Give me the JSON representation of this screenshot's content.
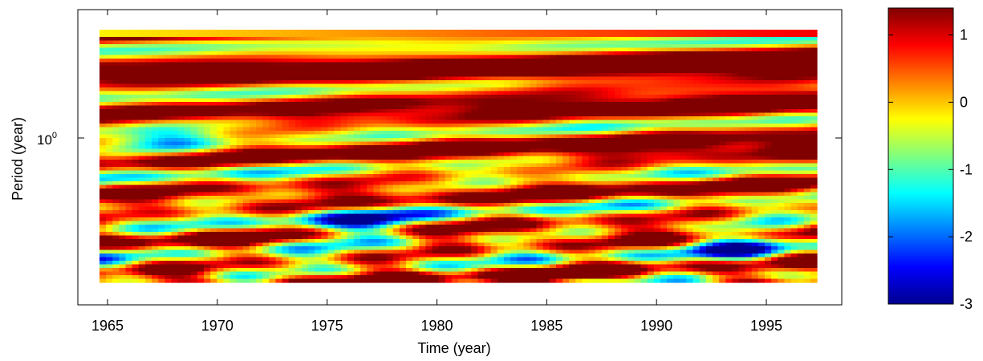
{
  "chart_data": {
    "type": "heatmap",
    "title": "",
    "xlabel": "Time (year)",
    "ylabel": "Period (year)",
    "x_ticks": [
      1965,
      1970,
      1975,
      1980,
      1985,
      1990,
      1995
    ],
    "x_tick_labels": [
      "1965",
      "1970",
      "1975",
      "1980",
      "1985",
      "1990",
      "1995"
    ],
    "xlim": [
      1965,
      1999
    ],
    "y_scale": "log",
    "y_ticks": [
      {
        "value": 1,
        "label": "10",
        "sup": "0"
      }
    ],
    "x_range": [
      1965,
      1998
    ],
    "colormap": "jet",
    "colorbar": {
      "range": [
        -3,
        1.4
      ],
      "ticks": [
        1,
        0,
        -1,
        -2,
        -3
      ],
      "tick_labels": [
        "1",
        "0",
        "-1",
        "-2",
        "-3"
      ],
      "location": "right"
    },
    "grid": false,
    "colors": {
      "jet": [
        "#00008f",
        "#0000ff",
        "#00ffff",
        "#ffff00",
        "#ff0000",
        "#800000"
      ]
    }
  }
}
